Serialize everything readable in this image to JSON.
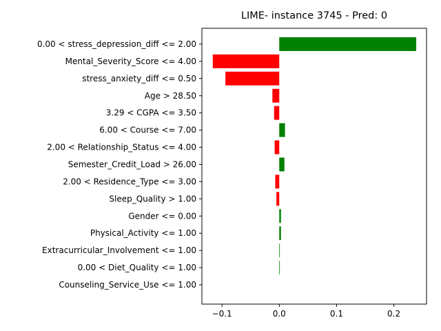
{
  "chart_data": {
    "type": "bar",
    "orientation": "horizontal",
    "title": "LIME- instance 3745 - Pred: 0",
    "xlabel": "",
    "ylabel": "",
    "xlim": [
      -0.135,
      0.257
    ],
    "xticks": [
      -0.1,
      0.0,
      0.1,
      0.2
    ],
    "xtick_labels": [
      "−0.1",
      "0.0",
      "0.1",
      "0.2"
    ],
    "grid": false,
    "colors": {
      "positive": "#008000",
      "negative": "#ff0000"
    },
    "categories": [
      "0.00 < stress_depression_diff <= 2.00",
      "Mental_Severity_Score <= 4.00",
      "stress_anxiety_diff <= 0.50",
      "Age > 28.50",
      "3.29 < CGPA <= 3.50",
      "6.00 < Course <= 7.00",
      "2.00 < Relationship_Status <= 4.00",
      "Semester_Credit_Load > 26.00",
      "2.00 < Residence_Type <= 3.00",
      "Sleep_Quality > 1.00",
      "Gender <= 0.00",
      "Physical_Activity <= 1.00",
      "Extracurricular_Involvement <= 1.00",
      "0.00 < Diet_Quality <= 1.00",
      "Counseling_Service_Use <= 1.00"
    ],
    "values": [
      0.239,
      -0.116,
      -0.094,
      -0.012,
      -0.009,
      0.01,
      -0.008,
      0.009,
      -0.007,
      -0.005,
      0.003,
      0.003,
      0.001,
      0.001,
      0.0
    ]
  }
}
